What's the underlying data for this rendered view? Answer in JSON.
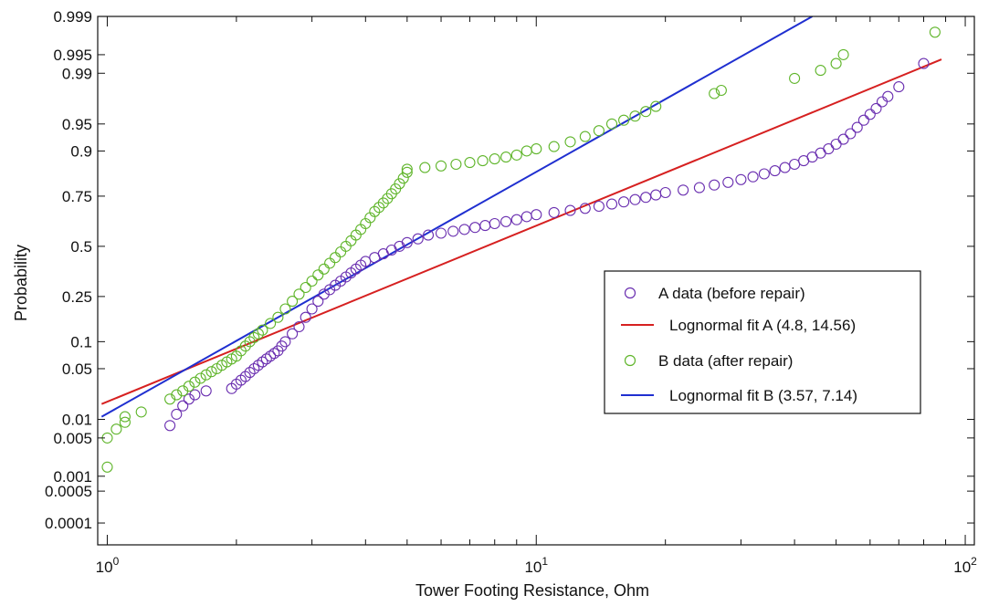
{
  "chart_data": {
    "type": "scatter",
    "title": "",
    "xlabel": "Tower Footing Resistance, Ohm",
    "ylabel": "Probability",
    "x_scale": "log",
    "y_scale": "lognormal probability",
    "xlim": [
      0.95,
      105
    ],
    "ylim": [
      3e-05,
      0.999
    ],
    "x_ticks": [
      {
        "value": 1,
        "base": "10",
        "exp": "0"
      },
      {
        "value": 10,
        "base": "10",
        "exp": "1"
      },
      {
        "value": 100,
        "base": "10",
        "exp": "2"
      }
    ],
    "y_ticks": [
      {
        "value": 0.0001,
        "label": "0.0001"
      },
      {
        "value": 0.0005,
        "label": "0.0005"
      },
      {
        "value": 0.001,
        "label": "0.001"
      },
      {
        "value": 0.005,
        "label": "0.005"
      },
      {
        "value": 0.01,
        "label": "0.01"
      },
      {
        "value": 0.05,
        "label": "0.05"
      },
      {
        "value": 0.1,
        "label": "0.1"
      },
      {
        "value": 0.25,
        "label": "0.25"
      },
      {
        "value": 0.5,
        "label": "0.5"
      },
      {
        "value": 0.75,
        "label": "0.75"
      },
      {
        "value": 0.9,
        "label": "0.9"
      },
      {
        "value": 0.95,
        "label": "0.95"
      },
      {
        "value": 0.99,
        "label": "0.99"
      },
      {
        "value": 0.995,
        "label": "0.995"
      },
      {
        "value": 0.999,
        "label": "0.999"
      }
    ],
    "grid": false,
    "legend_position": "right",
    "series": [
      {
        "name": "A data (before repair)",
        "kind": "markers",
        "color": "#6a2fb0",
        "x": [
          1.4,
          1.45,
          1.5,
          1.55,
          1.6,
          1.7,
          1.95,
          2.0,
          2.05,
          2.1,
          2.15,
          2.2,
          2.25,
          2.3,
          2.35,
          2.4,
          2.45,
          2.5,
          2.55,
          2.6,
          2.7,
          2.8,
          2.9,
          3.0,
          3.1,
          3.2,
          3.3,
          3.4,
          3.5,
          3.6,
          3.7,
          3.8,
          3.9,
          4.0,
          4.2,
          4.4,
          4.6,
          4.8,
          5.0,
          5.3,
          5.6,
          6.0,
          6.4,
          6.8,
          7.2,
          7.6,
          8.0,
          8.5,
          9.0,
          9.5,
          10.0,
          11.0,
          12.0,
          13.0,
          14.0,
          15.0,
          16.0,
          17.0,
          18.0,
          19.0,
          20.0,
          22.0,
          24.0,
          26.0,
          28.0,
          30.0,
          32.0,
          34.0,
          36.0,
          38.0,
          40.0,
          42.0,
          44.0,
          46.0,
          48.0,
          50.0,
          52.0,
          54.0,
          56.0,
          58.0,
          60.0,
          62.0,
          64.0,
          66.0,
          70.0,
          80.0
        ],
        "y": [
          0.008,
          0.012,
          0.016,
          0.02,
          0.023,
          0.026,
          0.028,
          0.032,
          0.036,
          0.04,
          0.045,
          0.05,
          0.055,
          0.06,
          0.065,
          0.07,
          0.075,
          0.08,
          0.09,
          0.1,
          0.12,
          0.14,
          0.17,
          0.2,
          0.23,
          0.26,
          0.28,
          0.3,
          0.32,
          0.34,
          0.36,
          0.38,
          0.4,
          0.42,
          0.44,
          0.46,
          0.48,
          0.5,
          0.52,
          0.54,
          0.56,
          0.57,
          0.58,
          0.59,
          0.6,
          0.61,
          0.62,
          0.63,
          0.64,
          0.655,
          0.665,
          0.675,
          0.685,
          0.695,
          0.705,
          0.715,
          0.725,
          0.735,
          0.745,
          0.755,
          0.765,
          0.775,
          0.785,
          0.795,
          0.805,
          0.815,
          0.825,
          0.835,
          0.845,
          0.855,
          0.865,
          0.875,
          0.885,
          0.895,
          0.905,
          0.915,
          0.925,
          0.935,
          0.945,
          0.955,
          0.962,
          0.968,
          0.974,
          0.978,
          0.984,
          0.993
        ]
      },
      {
        "name": "Lognormal fit A (4.8, 14.56)",
        "kind": "line",
        "color": "#d62020",
        "x": [
          0.97,
          88
        ],
        "y": [
          0.017,
          0.994
        ]
      },
      {
        "name": "B data (after repair)",
        "kind": "markers",
        "color": "#5fb52a",
        "x": [
          1.0,
          1.0,
          1.05,
          1.1,
          1.1,
          1.2,
          1.4,
          1.45,
          1.5,
          1.55,
          1.6,
          1.65,
          1.7,
          1.75,
          1.8,
          1.85,
          1.9,
          1.95,
          2.0,
          2.05,
          2.1,
          2.15,
          2.2,
          2.25,
          2.3,
          2.4,
          2.5,
          2.6,
          2.7,
          2.8,
          2.9,
          3.0,
          3.1,
          3.2,
          3.3,
          3.4,
          3.5,
          3.6,
          3.7,
          3.8,
          3.9,
          4.0,
          4.1,
          4.2,
          4.3,
          4.4,
          4.5,
          4.6,
          4.7,
          4.8,
          4.9,
          5.0,
          5.0,
          5.5,
          6.0,
          6.5,
          7.0,
          7.5,
          8.0,
          8.5,
          9.0,
          9.5,
          10.0,
          11.0,
          12.0,
          13.0,
          14.0,
          15.0,
          16.0,
          17.0,
          18.0,
          19.0,
          26.0,
          27.0,
          40.0,
          46.0,
          50.0,
          52.0,
          85.0
        ],
        "y": [
          0.0015,
          0.005,
          0.007,
          0.009,
          0.011,
          0.013,
          0.02,
          0.023,
          0.026,
          0.03,
          0.034,
          0.038,
          0.042,
          0.046,
          0.05,
          0.055,
          0.06,
          0.065,
          0.07,
          0.08,
          0.09,
          0.1,
          0.11,
          0.12,
          0.13,
          0.15,
          0.17,
          0.2,
          0.23,
          0.26,
          0.29,
          0.32,
          0.35,
          0.38,
          0.41,
          0.44,
          0.47,
          0.5,
          0.53,
          0.56,
          0.59,
          0.62,
          0.65,
          0.68,
          0.7,
          0.72,
          0.74,
          0.76,
          0.78,
          0.8,
          0.82,
          0.84,
          0.85,
          0.855,
          0.86,
          0.865,
          0.87,
          0.875,
          0.88,
          0.885,
          0.89,
          0.9,
          0.905,
          0.91,
          0.92,
          0.93,
          0.94,
          0.95,
          0.955,
          0.96,
          0.965,
          0.97,
          0.98,
          0.982,
          0.988,
          0.991,
          0.993,
          0.995,
          0.998
        ]
      },
      {
        "name": "Lognormal fit B (3.57, 7.14)",
        "kind": "line",
        "color": "#1f2fd0",
        "x": [
          0.97,
          44
        ],
        "y": [
          0.011,
          0.999
        ]
      }
    ]
  }
}
